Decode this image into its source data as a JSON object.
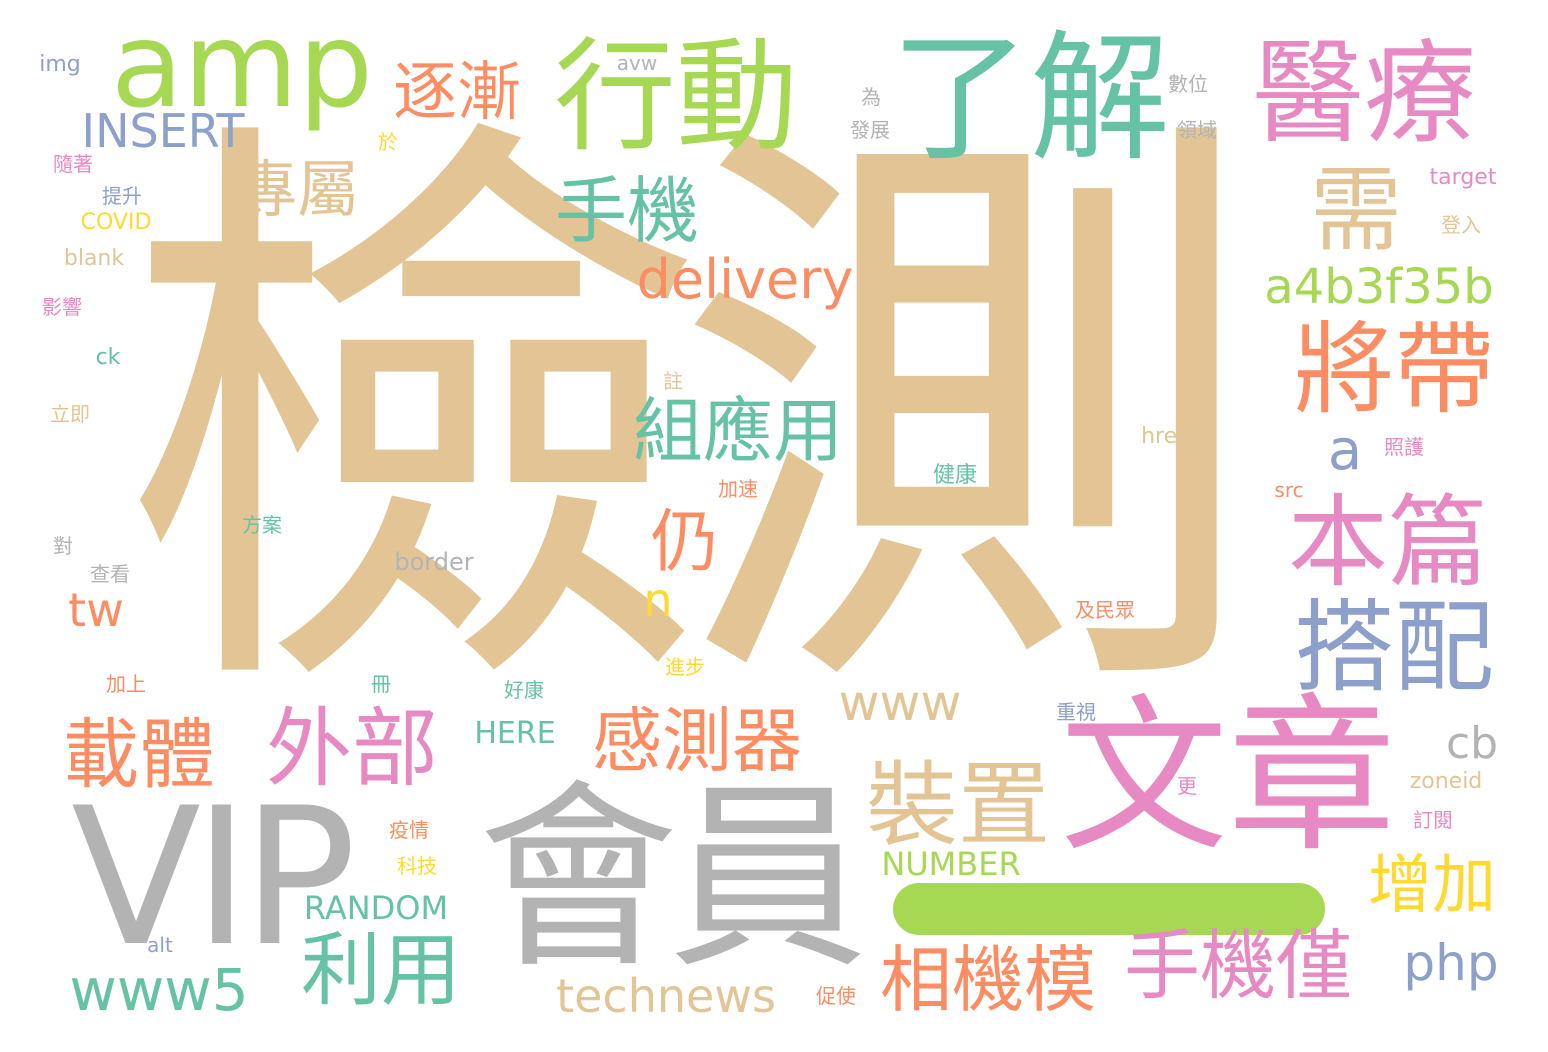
{
  "colors": {
    "tan": "#e3c595",
    "teal": "#66c2a5",
    "orange": "#fc8d62",
    "blue": "#8da0cb",
    "pink": "#e78ac3",
    "green": "#a6d854",
    "yellow": "#ffd92f",
    "gray": "#b3b3b3",
    "background": "#ffffff"
  },
  "words": {
    "jiance": "檢測",
    "wenzhang": "文章",
    "vip": "VIP",
    "huiyuan": "會員",
    "liaojie": "了解",
    "xingdong": "行動",
    "amp": "amp",
    "yiliao": "醫療",
    "xu": "需",
    "jiangdai": "將帶",
    "benpian": "本篇",
    "dapei": "搭配",
    "zhuangzhi": "裝置",
    "shoujijin": "手機僅",
    "xiangjimo": "相機模",
    "ganceqi": "感測器",
    "waibu": "外部",
    "zaiti": "載體",
    "liyong": "利用",
    "zuyingyong": "組應用",
    "shouji": "手機",
    "zhuanshu": "專屬",
    "zhujian": "逐漸",
    "reng": "仍",
    "zengjia": "增加",
    "delivery": "delivery",
    "a4b3f35b": "a4b3f35b",
    "insert": "INSERT",
    "www5": "www5",
    "technews": "technews",
    "www": "www",
    "php": "php",
    "cb": "cb",
    "tw": "tw",
    "a": "a",
    "n": "n",
    "number": "NUMBER",
    "random": "RANDOM",
    "here": "HERE",
    "border": "border",
    "zoneid": "zoneid",
    "target": "target",
    "href": "href",
    "src": "src",
    "img": "img",
    "avw": "avw",
    "covid": "COVID",
    "blank": "blank",
    "ck": "ck",
    "alt": "alt",
    "wei": "為",
    "fazhan": "發展",
    "shuwei": "數位",
    "lingyu": "領域",
    "yu": "於",
    "suizhe": "隨著",
    "tisheng": "提升",
    "yingxiang": "影響",
    "liji": "立即",
    "dui": "對",
    "chakan": "查看",
    "fangan": "方案",
    "jiasu": "加速",
    "zhu": "註",
    "jiankang": "健康",
    "zhaohu": "照護",
    "denglu": "登入",
    "jiminzhong": "及民眾",
    "jinbu": "進步",
    "jiashang": "加上",
    "ce": "冊",
    "haokang": "好康",
    "zhongshi": "重視",
    "geng": "更",
    "dingyue": "訂閱",
    "yiqing": "疫情",
    "keji": "科技",
    "cushi": "促使"
  }
}
